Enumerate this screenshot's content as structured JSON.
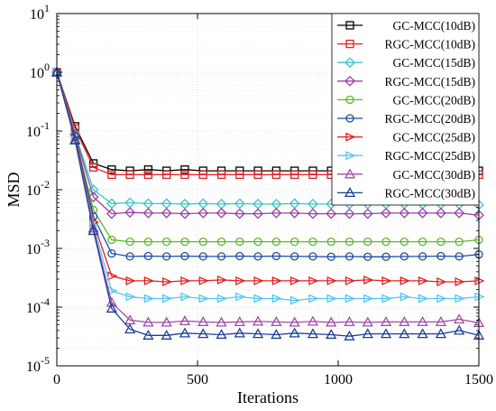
{
  "chart_data": {
    "type": "line",
    "title": "",
    "xlabel": "Iterations",
    "ylabel": "MSD",
    "xlim": [
      0,
      1500
    ],
    "ylim": [
      1e-05,
      10
    ],
    "yscale": "log",
    "grid": true,
    "legend_position": "top-right",
    "x_ticks": [
      0,
      500,
      1000,
      1500
    ],
    "x_tick_labels": [
      "0",
      "500",
      "1000",
      "1500"
    ],
    "y_ticks": [
      1e-05,
      0.0001,
      0.001,
      0.01,
      0.1,
      1.0,
      10.0
    ],
    "y_tick_labels": [
      {
        "base": "10",
        "exp": "-5"
      },
      {
        "base": "10",
        "exp": "-4"
      },
      {
        "base": "10",
        "exp": "-3"
      },
      {
        "base": "10",
        "exp": "-2"
      },
      {
        "base": "10",
        "exp": "-1"
      },
      {
        "base": "10",
        "exp": "0"
      },
      {
        "base": "10",
        "exp": "1"
      }
    ],
    "x": [
      0,
      65,
      130,
      195,
      260,
      325,
      390,
      455,
      520,
      585,
      650,
      715,
      780,
      845,
      910,
      975,
      1040,
      1105,
      1170,
      1235,
      1300,
      1365,
      1430,
      1500
    ],
    "series": [
      {
        "name": "GC-MCC(10dB)",
        "color": "#000000",
        "marker": "square",
        "values": [
          1.0,
          0.12,
          0.028,
          0.022,
          0.021,
          0.022,
          0.021,
          0.022,
          0.021,
          0.021,
          0.021,
          0.021,
          0.021,
          0.021,
          0.021,
          0.021,
          0.021,
          0.021,
          0.021,
          0.021,
          0.021,
          0.021,
          0.021,
          0.021
        ]
      },
      {
        "name": "RGC-MCC(10dB)",
        "color": "#ee1c25",
        "marker": "square",
        "values": [
          1.0,
          0.11,
          0.024,
          0.018,
          0.018,
          0.018,
          0.018,
          0.018,
          0.018,
          0.018,
          0.018,
          0.018,
          0.018,
          0.018,
          0.018,
          0.018,
          0.018,
          0.018,
          0.018,
          0.018,
          0.018,
          0.018,
          0.018,
          0.018
        ]
      },
      {
        "name": "GC-MCC(15dB)",
        "color": "#3cc4cc",
        "marker": "diamond",
        "values": [
          1.0,
          0.09,
          0.01,
          0.0058,
          0.006,
          0.0058,
          0.0058,
          0.0057,
          0.0058,
          0.0057,
          0.0058,
          0.0057,
          0.0057,
          0.0058,
          0.0057,
          0.0057,
          0.0057,
          0.0057,
          0.0057,
          0.0057,
          0.0057,
          0.0057,
          0.0057,
          0.0055
        ]
      },
      {
        "name": "RGC-MCC(15dB)",
        "color": "#9b3fa5",
        "marker": "diamond",
        "values": [
          1.0,
          0.085,
          0.0075,
          0.0039,
          0.0041,
          0.004,
          0.004,
          0.0039,
          0.004,
          0.004,
          0.0039,
          0.0039,
          0.004,
          0.004,
          0.0039,
          0.0039,
          0.0039,
          0.0039,
          0.004,
          0.004,
          0.004,
          0.004,
          0.004,
          0.0037
        ]
      },
      {
        "name": "GC-MCC(20dB)",
        "color": "#5db82e",
        "marker": "circle",
        "values": [
          1.0,
          0.08,
          0.0045,
          0.0014,
          0.0013,
          0.0013,
          0.0013,
          0.0013,
          0.0013,
          0.0013,
          0.0013,
          0.0013,
          0.0013,
          0.0013,
          0.0013,
          0.0013,
          0.0013,
          0.0013,
          0.0013,
          0.0013,
          0.0013,
          0.0013,
          0.0013,
          0.0014
        ]
      },
      {
        "name": "RGC-MCC(20dB)",
        "color": "#1a4fa3",
        "marker": "circle",
        "values": [
          1.0,
          0.08,
          0.0035,
          0.00082,
          0.00073,
          0.00074,
          0.00073,
          0.00074,
          0.00073,
          0.00073,
          0.00074,
          0.00073,
          0.00074,
          0.00073,
          0.00073,
          0.00072,
          0.00073,
          0.00072,
          0.00072,
          0.00073,
          0.00073,
          0.00074,
          0.00073,
          0.00079
        ]
      },
      {
        "name": "GC-MCC(25dB)",
        "color": "#e0201f",
        "marker": "triangle-right",
        "values": [
          1.0,
          0.075,
          0.0028,
          0.00034,
          0.00028,
          0.00028,
          0.00027,
          0.00028,
          0.00028,
          0.00029,
          0.00028,
          0.00028,
          0.00028,
          0.00028,
          0.00028,
          0.00028,
          0.00028,
          0.00029,
          0.00028,
          0.00028,
          0.00028,
          0.00027,
          0.00027,
          0.00028
        ]
      },
      {
        "name": "RGC-MCC(25dB)",
        "color": "#55c7ee",
        "marker": "triangle-right",
        "values": [
          1.0,
          0.07,
          0.0025,
          0.00019,
          0.00015,
          0.00014,
          0.00014,
          0.00015,
          0.00014,
          0.00014,
          0.00015,
          0.00014,
          0.00014,
          0.00013,
          0.00014,
          0.00014,
          0.00014,
          0.00014,
          0.00014,
          0.00015,
          0.00014,
          0.00014,
          0.00014,
          0.00015
        ]
      },
      {
        "name": "GC-MCC(30dB)",
        "color": "#a24aa8",
        "marker": "triangle-up",
        "values": [
          1.0,
          0.07,
          0.0022,
          0.00012,
          6e-05,
          5.5e-05,
          5.5e-05,
          5.8e-05,
          5.6e-05,
          5.5e-05,
          5.6e-05,
          5.7e-05,
          5.6e-05,
          5.5e-05,
          5.7e-05,
          5.5e-05,
          5.6e-05,
          5.5e-05,
          5.6e-05,
          5.6e-05,
          5.6e-05,
          5.6e-05,
          6.2e-05,
          5.4e-05
        ]
      },
      {
        "name": "RGC-MCC(30dB)",
        "color": "#1b3f98",
        "marker": "triangle-up",
        "values": [
          1.0,
          0.07,
          0.002,
          9.5e-05,
          4.2e-05,
          3.3e-05,
          3.3e-05,
          3.6e-05,
          3.5e-05,
          3.4e-05,
          3.6e-05,
          3.5e-05,
          3.4e-05,
          3.6e-05,
          3.5e-05,
          3.4e-05,
          3.2e-05,
          3.5e-05,
          3.5e-05,
          3.5e-05,
          3.5e-05,
          3.5e-05,
          4e-05,
          3.3e-05
        ]
      }
    ]
  }
}
